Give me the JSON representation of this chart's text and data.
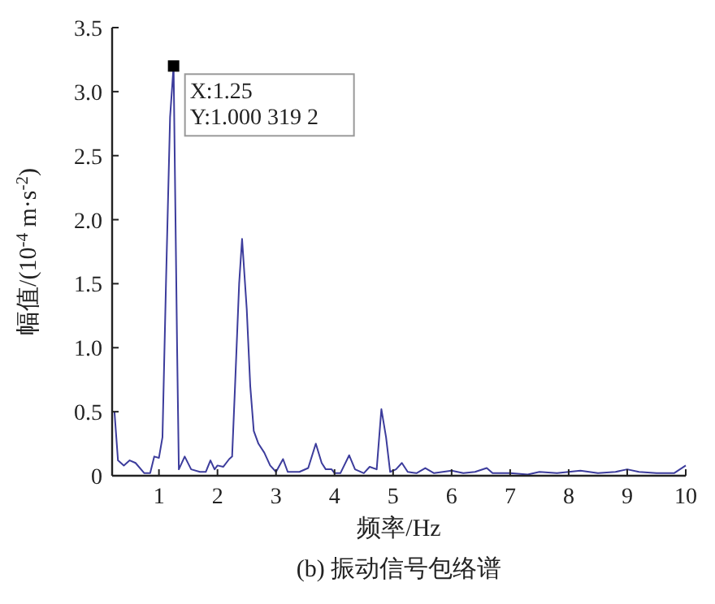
{
  "chart_data": {
    "type": "line",
    "title": "(b) 振动信号包络谱",
    "xlabel": "频率/Hz",
    "ylabel": "幅值/(10$^{-4}$ m·s$^{-2}$)",
    "xlim": [
      0.2,
      10
    ],
    "xticks": [
      1,
      2,
      3,
      4,
      5,
      6,
      7,
      8,
      9,
      10
    ],
    "ylim": [
      0,
      3.5
    ],
    "yticks": [
      0,
      {
        "value": 0.5,
        "label": "0.5"
      },
      {
        "value": 1,
        "label": "1.0"
      },
      {
        "value": 1.5,
        "label": "1.5"
      },
      {
        "value": 2,
        "label": "2.0"
      },
      {
        "value": 2.5,
        "label": "2.5"
      },
      {
        "value": 3,
        "label": "3.0"
      },
      {
        "value": 3.5,
        "label": "3.5"
      }
    ],
    "grid": false,
    "marker": "none",
    "line_style": "solid",
    "annotations": [
      {
        "text": "X:1.25\nY:1.000 319 2",
        "x": 1.25,
        "y": 3.2
      }
    ],
    "series": [
      {
        "color": "#3c3c9c",
        "x": [
          0.24,
          0.3,
          0.4,
          0.5,
          0.6,
          0.75,
          0.85,
          0.92,
          1.0,
          1.06,
          1.12,
          1.19,
          1.25,
          1.31,
          1.34,
          1.44,
          1.55,
          1.7,
          1.8,
          1.88,
          1.95,
          2.0,
          2.1,
          2.2,
          2.25,
          2.3,
          2.37,
          2.42,
          2.5,
          2.56,
          2.62,
          2.7,
          2.8,
          2.9,
          3.0,
          3.12,
          3.2,
          3.4,
          3.55,
          3.68,
          3.78,
          3.85,
          3.95,
          4.0,
          4.1,
          4.25,
          4.35,
          4.5,
          4.6,
          4.72,
          4.8,
          4.88,
          4.95,
          5.05,
          5.15,
          5.25,
          5.4,
          5.55,
          5.7,
          6.0,
          6.2,
          6.4,
          6.6,
          6.7,
          7.0,
          7.3,
          7.5,
          7.8,
          8.0,
          8.2,
          8.5,
          8.8,
          9.0,
          9.2,
          9.5,
          9.8,
          10.0
        ],
        "values": [
          0.5,
          0.12,
          0.08,
          0.12,
          0.1,
          0.02,
          0.02,
          0.15,
          0.14,
          0.3,
          1.5,
          2.8,
          3.2,
          1.0,
          0.05,
          0.15,
          0.05,
          0.03,
          0.03,
          0.12,
          0.05,
          0.08,
          0.07,
          0.13,
          0.15,
          0.7,
          1.5,
          1.85,
          1.3,
          0.7,
          0.35,
          0.25,
          0.18,
          0.08,
          0.03,
          0.13,
          0.03,
          0.03,
          0.06,
          0.25,
          0.1,
          0.05,
          0.05,
          0.02,
          0.02,
          0.16,
          0.05,
          0.02,
          0.07,
          0.05,
          0.52,
          0.3,
          0.03,
          0.05,
          0.1,
          0.03,
          0.02,
          0.06,
          0.02,
          0.04,
          0.02,
          0.03,
          0.06,
          0.02,
          0.02,
          0.01,
          0.03,
          0.02,
          0.03,
          0.04,
          0.02,
          0.03,
          0.05,
          0.03,
          0.02,
          0.02,
          0.08
        ]
      }
    ]
  }
}
